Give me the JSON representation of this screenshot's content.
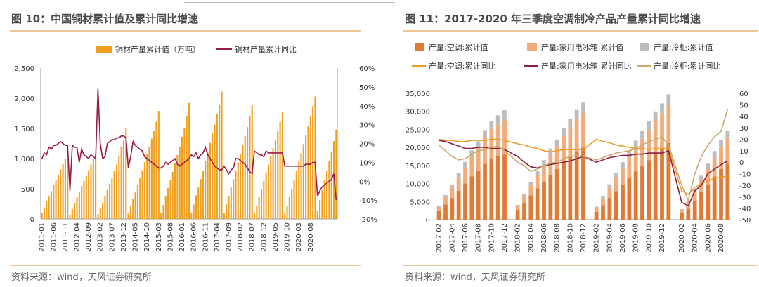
{
  "charts": [
    {
      "title": "图 10：中国铜材累计值及累计同比增速",
      "source": "资料来源：wind，天风证券研究所"
    },
    {
      "title": "图 11：2017-2020 年三季度空调制冷产品产量累计同比增速",
      "source": "资料来源：wind，天风证券研究所"
    }
  ],
  "colors": {
    "copper_bar": "#f0a020",
    "copper_line": "#9b1b47",
    "ac_bar": "#e07a35",
    "fridge_bar": "#f2ab79",
    "freezer_bar": "#bdbdbd",
    "ac_line": "#f09a2a",
    "fridge_line": "#8c1e3c",
    "freezer_line": "#c8aa6e",
    "rule": "#f2c797"
  },
  "chart_data": [
    {
      "type": "bar",
      "legend_position": "top",
      "series": [
        {
          "name": "铜材产量累计值（万吨）",
          "kind": "bar",
          "axis": "left",
          "values": [
            95,
            190,
            290,
            370,
            460,
            560,
            640,
            720,
            820,
            910,
            1000,
            1080,
            70,
            165,
            265,
            360,
            445,
            545,
            630,
            710,
            810,
            900,
            1000,
            1080,
            80,
            175,
            270,
            385,
            480,
            580,
            680,
            800,
            900,
            1040,
            1200,
            1300,
            1510,
            90,
            210,
            330,
            440,
            560,
            680,
            810,
            940,
            1080,
            1200,
            1330,
            1460,
            1610,
            1790,
            95,
            230,
            380,
            510,
            640,
            780,
            920,
            1060,
            1200,
            1360,
            1510,
            1700,
            1920,
            95,
            240,
            390,
            520,
            660,
            800,
            960,
            1100,
            1260,
            1420,
            1560,
            1740,
            1900,
            2110,
            95,
            240,
            380,
            520,
            660,
            800,
            940,
            1080,
            1220,
            1370,
            1520,
            1700,
            1880,
            90,
            220,
            360,
            500,
            630,
            770,
            900,
            1040,
            1170,
            1310,
            1450,
            1610,
            1780,
            90,
            220,
            360,
            500,
            650,
            800,
            950,
            1090,
            1240,
            1390,
            1540,
            1700,
            1870,
            2030,
            140,
            310,
            480,
            640,
            800,
            950,
            1120,
            1290,
            1480
          ]
        },
        {
          "name": "铜材产量累计同比",
          "kind": "line",
          "axis": "right",
          "values": [
            12,
            15,
            14,
            18,
            17,
            19,
            19,
            20,
            21,
            20,
            19,
            19,
            -5,
            19,
            18,
            18,
            10,
            17,
            14,
            13,
            12,
            14,
            13,
            12,
            49,
            20,
            12,
            13,
            20,
            21,
            22,
            22,
            23,
            23,
            24,
            24,
            23,
            7,
            13,
            21,
            19,
            18,
            17,
            16,
            13,
            12,
            11,
            10,
            9,
            8,
            7,
            7,
            8,
            10,
            9,
            10,
            11,
            12,
            9,
            8,
            9,
            10,
            11,
            12,
            14,
            13,
            15,
            12,
            14,
            15,
            18,
            14,
            12,
            10,
            8,
            7,
            6,
            6,
            8,
            6,
            4,
            6,
            7,
            12,
            12,
            11,
            10,
            9,
            7,
            5,
            4,
            16,
            15,
            14,
            14,
            13,
            16,
            15,
            15,
            15,
            15,
            15,
            15,
            15,
            8,
            8,
            8,
            8,
            8,
            8,
            8,
            8,
            8,
            9,
            9,
            9,
            10,
            10,
            -8,
            -5,
            -3,
            -2,
            -1,
            0,
            1,
            4,
            -10
          ]
        }
      ],
      "x_tick_labels": [
        "2011-01",
        "2011-06",
        "2011-11",
        "2012-04",
        "2012-09",
        "2013-02",
        "2013-07",
        "2013-12",
        "2014-05",
        "2014-10",
        "2015-03",
        "2015-08",
        "2016-01",
        "2016-06",
        "2016-11",
        "2017-04",
        "2017-09",
        "2018-02",
        "2018-07",
        "2018-12",
        "2019-05",
        "2019-10",
        "2020-03",
        "2020-08"
      ],
      "ylim_left": [
        0,
        2500
      ],
      "yticks_left": [
        "2,500",
        "2,000",
        "1,500",
        "1,000",
        "500",
        "0"
      ],
      "ylim_right": [
        -20,
        60
      ],
      "yticks_right": [
        "60%",
        "50%",
        "40%",
        "30%",
        "20%",
        "10%",
        "0%",
        "-10%",
        "-20%"
      ],
      "grid": false
    },
    {
      "type": "bar",
      "legend_position": "top",
      "stacked": true,
      "series": [
        {
          "name": "产量:空调:累计值",
          "kind": "bar",
          "axis": "left",
          "values": [
            2400,
            4200,
            6000,
            8000,
            10000,
            12000,
            13500,
            15500,
            17000,
            17500,
            18000,
            2700,
            4500,
            6700,
            8700,
            10500,
            12500,
            14000,
            16000,
            17500,
            19000,
            20000,
            2200,
            4000,
            6000,
            7900,
            9700,
            11600,
            13400,
            15000,
            16500,
            18200,
            19500,
            21200,
            1800,
            3000,
            5100,
            7600,
            9700,
            12000,
            14000,
            15500
          ]
        },
        {
          "name": "产量:家用电冰箱:累计值",
          "kind": "bar",
          "axis": "left",
          "values": [
            1100,
            2000,
            2800,
            3700,
            4500,
            5400,
            6200,
            7100,
            8000,
            8800,
            9500,
            1100,
            2000,
            2800,
            3700,
            4500,
            5400,
            6200,
            7100,
            8000,
            8800,
            9600,
            1100,
            2000,
            2900,
            3800,
            4700,
            5600,
            6500,
            7400,
            8300,
            9200,
            9900,
            10500,
            800,
            1500,
            2500,
            3400,
            4300,
            5300,
            6100,
            7000
          ]
        },
        {
          "name": "产量:冷柜:累计值",
          "kind": "bar",
          "axis": "left",
          "values": [
            300,
            600,
            900,
            1200,
            1500,
            1800,
            2000,
            2200,
            2400,
            2600,
            2800,
            300,
            600,
            900,
            1200,
            1500,
            1800,
            2000,
            2200,
            2400,
            2600,
            2800,
            300,
            600,
            900,
            1200,
            1500,
            1800,
            2000,
            2200,
            2400,
            2600,
            2800,
            3000,
            300,
            600,
            900,
            1200,
            1500,
            1700,
            1900,
            2000
          ]
        },
        {
          "name": "产量:空调:累计同比",
          "kind": "line",
          "axis": "right",
          "values": [
            20,
            19,
            19,
            18,
            18,
            19,
            19,
            19,
            20,
            20,
            19,
            16,
            15,
            13,
            12,
            10,
            9,
            10,
            11,
            11,
            11,
            11,
            20,
            18,
            17,
            15,
            14,
            13,
            12,
            12,
            11,
            12,
            12,
            12,
            -25,
            -28,
            -22,
            -19,
            -16,
            -14,
            -13,
            -12
          ]
        },
        {
          "name": "产量:家用电冰箱:累计同比",
          "kind": "line",
          "axis": "right",
          "values": [
            19,
            18,
            16,
            14,
            12,
            12,
            13,
            13,
            12,
            12,
            11,
            5,
            0,
            -4,
            -5,
            -3,
            -2,
            -1,
            0,
            1,
            3,
            5,
            0,
            2,
            4,
            5,
            6,
            6,
            7,
            7,
            8,
            8,
            8,
            10,
            -35,
            -38,
            -25,
            -20,
            -10,
            -6,
            -2,
            1
          ]
        },
        {
          "name": "产量:冷柜:累计同比",
          "kind": "line",
          "axis": "right",
          "values": [
            15,
            10,
            5,
            2,
            3,
            7,
            10,
            11,
            13,
            14,
            10,
            0,
            -3,
            -8,
            -6,
            -3,
            -1,
            0,
            3,
            5,
            6,
            5,
            2,
            4,
            6,
            8,
            9,
            10,
            12,
            15,
            18,
            20,
            22,
            15,
            -20,
            -33,
            -10,
            5,
            15,
            22,
            27,
            46
          ]
        }
      ],
      "x_tick_labels": [
        "2017-02",
        "2017-04",
        "2017-06",
        "2017-08",
        "2017-10",
        "2017-12",
        "2018-02",
        "2018-04",
        "2018-06",
        "2018-08",
        "2018-10",
        "2018-12",
        "2019-02",
        "2019-04",
        "2019-06",
        "2019-08",
        "2019-10",
        "2019-12",
        "2020-02",
        "2020-04",
        "2020-06",
        "2020-08"
      ],
      "ylim_left": [
        0,
        35000
      ],
      "yticks_left": [
        "35,000",
        "30,000",
        "25,000",
        "20,000",
        "15,000",
        "10,000",
        "5,000",
        "0"
      ],
      "ylim_right": [
        -50,
        60
      ],
      "yticks_right": [
        "60",
        "50",
        "40",
        "30",
        "20",
        "10",
        "0",
        "-10",
        "-20",
        "-30",
        "-40",
        "-50"
      ],
      "grid": false
    }
  ]
}
